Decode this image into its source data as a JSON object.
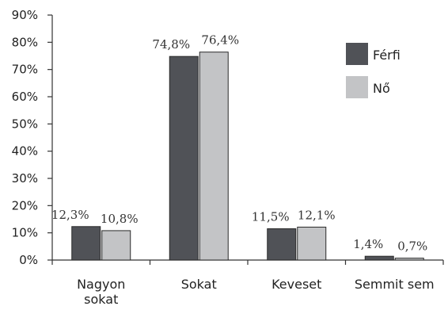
{
  "chart_data": {
    "type": "bar",
    "categories": [
      "Nagyon sokat",
      "Sokat",
      "Keveset",
      "Semmit sem"
    ],
    "category_lines": [
      [
        "Nagyon",
        "sokat"
      ],
      [
        "Sokat"
      ],
      [
        "Keveset"
      ],
      [
        "Semmit sem"
      ]
    ],
    "series": [
      {
        "name": "Férfi",
        "values": [
          12.3,
          74.8,
          11.5,
          1.4
        ],
        "labels": [
          "12,3%",
          "74,8%",
          "11,5%",
          "1,4%"
        ],
        "color": "#505257"
      },
      {
        "name": "Nő",
        "values": [
          10.8,
          76.4,
          12.1,
          0.7
        ],
        "labels": [
          "10,8%",
          "76,4%",
          "12,1%",
          "0,7%"
        ],
        "color": "#c3c4c6"
      }
    ],
    "ylim": [
      0,
      90
    ],
    "yticks": [
      "0%",
      "10%",
      "20%",
      "30%",
      "40%",
      "50%",
      "60%",
      "70%",
      "80%",
      "90%"
    ],
    "legend_position": "top-right",
    "grid": false
  }
}
